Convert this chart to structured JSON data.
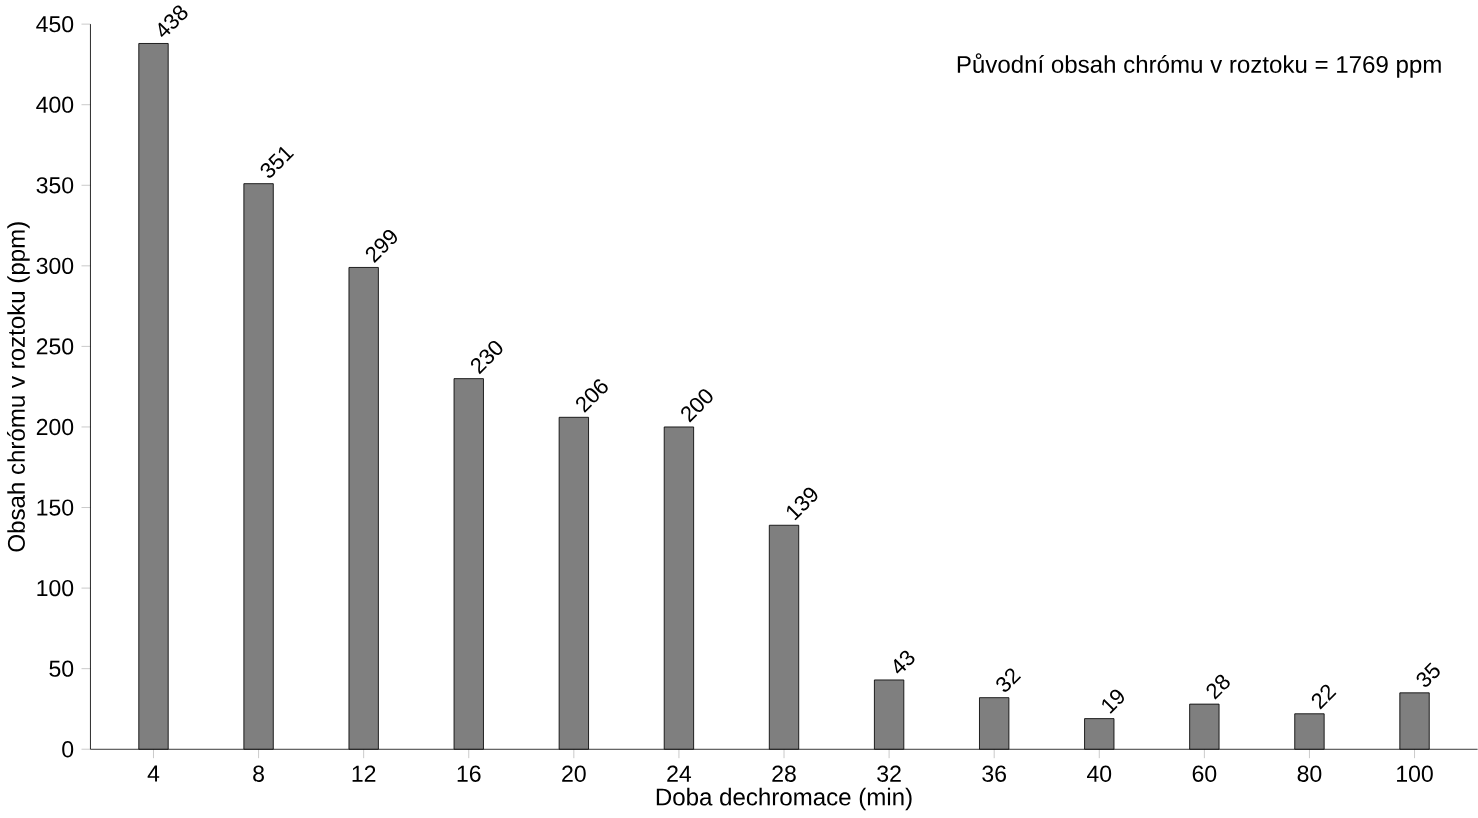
{
  "chart_data": {
    "type": "bar",
    "xlabel": "Doba dechromace (min)",
    "ylabel": "Obsah chrómu v roztoku (ppm)",
    "categories": [
      "4",
      "8",
      "12",
      "16",
      "20",
      "24",
      "28",
      "32",
      "36",
      "40",
      "60",
      "80",
      "100"
    ],
    "values": [
      438,
      351,
      299,
      230,
      206,
      200,
      139,
      43,
      32,
      19,
      28,
      22,
      35
    ],
    "color": "#7f7f7f",
    "ylim": [
      0,
      450
    ],
    "yticks": [
      0,
      50,
      100,
      150,
      200,
      250,
      300,
      350,
      400,
      450
    ],
    "data_labels": true,
    "grid": false,
    "annotations": [
      "Původní obsah chrómu v roztoku = 1769 ppm"
    ]
  }
}
